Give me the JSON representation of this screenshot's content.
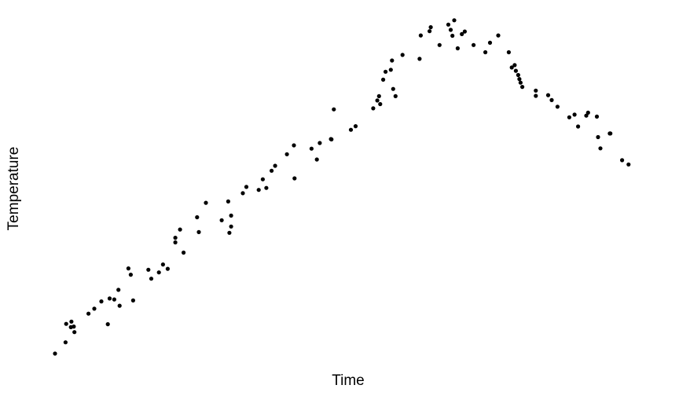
{
  "chart_data": {
    "type": "scatter",
    "title": "",
    "xlabel": "Time",
    "ylabel": "Temperature",
    "xlim": [
      0,
      100
    ],
    "ylim": [
      0,
      100
    ],
    "axes_visible": false,
    "grid": false,
    "point_color": "#000000",
    "series": [
      {
        "x": [
          0.0,
          1.8,
          1.9,
          2.7,
          2.8,
          3.2,
          3.3,
          5.7,
          6.7,
          7.9,
          9.0,
          9.3,
          10.1,
          10.8,
          11.0,
          12.5,
          12.9,
          13.3,
          15.9,
          16.4,
          17.7,
          18.4,
          19.2,
          20.5,
          20.5,
          21.3,
          21.9,
          24.2,
          24.5,
          25.7,
          28.4,
          29.5,
          29.7,
          30.0,
          30.0,
          32.0,
          32.6,
          34.7,
          35.4,
          36.0,
          36.9,
          37.5,
          39.5,
          40.7,
          40.8,
          43.7,
          44.6,
          45.1,
          47.0,
          47.1,
          47.5,
          50.4,
          51.2,
          54.2,
          54.9,
          55.2,
          55.4,
          55.9,
          56.3,
          57.2,
          57.4,
          57.6,
          58.0,
          59.2,
          62.1,
          62.3,
          63.8,
          64.0,
          65.5,
          67.0,
          67.4,
          67.7,
          68.0,
          68.6,
          69.3,
          69.8,
          71.3,
          73.3,
          74.1,
          75.5,
          77.3,
          77.8,
          78.3,
          78.5,
          78.9,
          79.1,
          79.3,
          79.6,
          81.9,
          81.9,
          84.0,
          84.6,
          85.6,
          87.6,
          88.5,
          89.1,
          90.5,
          90.8,
          92.3,
          92.5,
          92.9,
          94.5,
          94.6,
          96.6,
          97.7
        ],
        "y": [
          0.0,
          3.4,
          9.0,
          8.0,
          9.7,
          8.2,
          6.5,
          12.1,
          13.6,
          15.8,
          8.9,
          16.7,
          16.4,
          19.3,
          14.5,
          25.8,
          23.9,
          16.1,
          25.4,
          22.7,
          24.6,
          27.0,
          25.7,
          35.1,
          33.7,
          37.6,
          30.6,
          41.3,
          36.8,
          45.7,
          40.4,
          46.1,
          36.6,
          41.8,
          38.5,
          48.6,
          50.5,
          49.6,
          52.8,
          50.2,
          55.4,
          56.9,
          60.4,
          63.1,
          53.1,
          62.1,
          58.8,
          63.8,
          65.0,
          64.9,
          74.0,
          67.8,
          68.9,
          74.3,
          76.7,
          78.0,
          75.6,
          83.0,
          85.4,
          86.0,
          88.8,
          80.2,
          78.0,
          90.5,
          89.3,
          96.4,
          97.7,
          98.9,
          93.5,
          99.7,
          98.1,
          96.3,
          101.0,
          92.5,
          96.8,
          97.6,
          93.5,
          91.3,
          94.2,
          96.4,
          91.3,
          86.7,
          87.4,
          85.7,
          84.4,
          83.2,
          82.1,
          80.8,
          78.1,
          79.7,
          78.3,
          76.8,
          74.8,
          71.6,
          72.4,
          68.8,
          72.1,
          73.0,
          71.8,
          65.6,
          62.2,
          66.7,
          66.7,
          58.6,
          57.3
        ]
      }
    ]
  }
}
